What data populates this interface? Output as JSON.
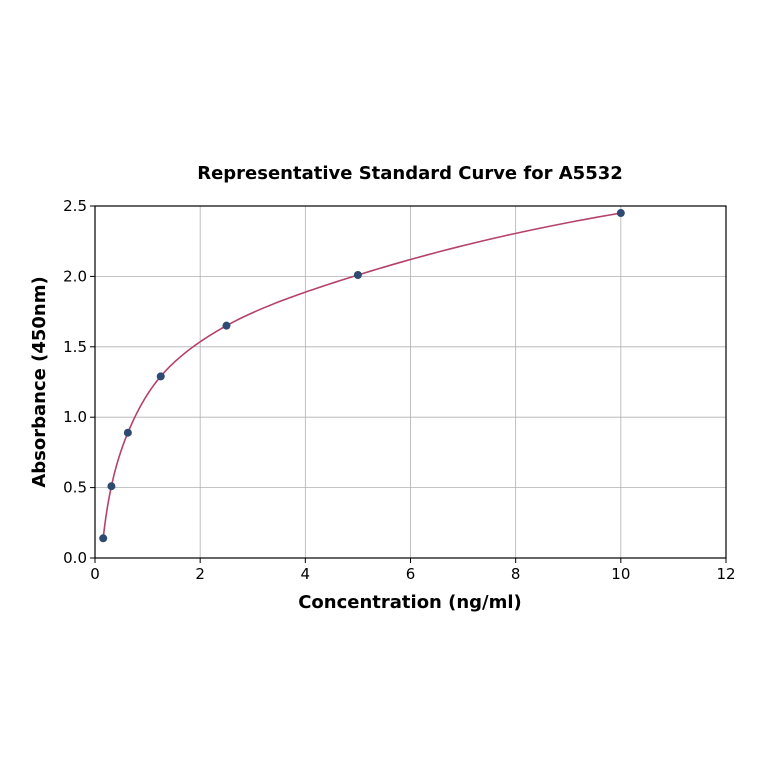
{
  "chart_data": {
    "type": "scatter",
    "title": "Representative Standard Curve for A5532",
    "xlabel": "Concentration (ng/ml)",
    "ylabel": "Absorbance (450nm)",
    "xlim": [
      0,
      12
    ],
    "ylim": [
      0,
      2.5
    ],
    "xticks": [
      "0",
      "2",
      "4",
      "6",
      "8",
      "10",
      "12"
    ],
    "yticks": [
      "0.0",
      "0.5",
      "1.0",
      "1.5",
      "2.0",
      "2.5"
    ],
    "grid": true,
    "legend": null,
    "series": [
      {
        "name": "Standard points",
        "type": "scatter",
        "color": "#2e4a72",
        "x": [
          0.156,
          0.312,
          0.625,
          1.25,
          2.5,
          5.0,
          10.0
        ],
        "y": [
          0.14,
          0.51,
          0.89,
          1.29,
          1.65,
          2.01,
          2.45
        ]
      },
      {
        "name": "Fitted curve",
        "type": "line",
        "color": "#b5426a"
      }
    ]
  }
}
